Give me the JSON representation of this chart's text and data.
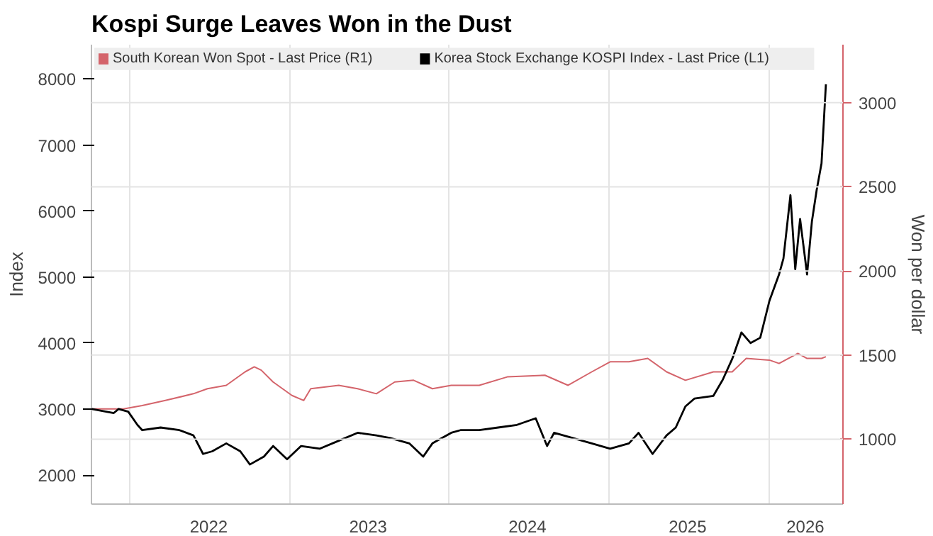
{
  "chart_data": {
    "type": "line",
    "title": "Kospi Surge Leaves Won in the Dust",
    "ylabel": "Index",
    "y2label": "Won per dollar",
    "xlim": [
      "2021-10-06",
      "2026-06-19"
    ],
    "xticks": [
      {
        "value": "2022-01-01",
        "label": null
      },
      {
        "value": "2022-07-01",
        "label": "2022"
      },
      {
        "value": "2023-01-01",
        "label": null
      },
      {
        "value": "2023-06-30",
        "label": "2023"
      },
      {
        "value": "2024-01-01",
        "label": null
      },
      {
        "value": "2024-06-28",
        "label": "2024"
      },
      {
        "value": "2025-01-01",
        "label": null
      },
      {
        "value": "2025-06-29",
        "label": "2025"
      },
      {
        "value": "2026-01-01",
        "label": null
      },
      {
        "value": "2026-03-25",
        "label": "2026"
      }
    ],
    "ylim": [
      1560,
      8520
    ],
    "yticks": [
      2000,
      3000,
      4000,
      5000,
      6000,
      7000,
      8000
    ],
    "y2lim": [
      614,
      3345
    ],
    "y2ticks": [
      1000,
      1500,
      2000,
      2500,
      3000
    ],
    "grid": true,
    "legend": "top",
    "line_style": "solid",
    "series": [
      {
        "name": "South Korean Won Spot - Last Price (R1)",
        "color": "#d4646b",
        "axis": "y2",
        "x": [
          "2021-10-07",
          "2021-12-18",
          "2022-01-30",
          "2022-03-24",
          "2022-05-27",
          "2022-06-28",
          "2022-08-10",
          "2022-09-22",
          "2022-10-13",
          "2022-10-29",
          "2022-11-25",
          "2023-01-07",
          "2023-02-03",
          "2023-02-19",
          "2023-04-24",
          "2023-06-06",
          "2023-07-19",
          "2023-08-30",
          "2023-10-12",
          "2023-11-24",
          "2024-01-06",
          "2024-03-10",
          "2024-05-13",
          "2024-08-07",
          "2024-09-29",
          "2024-11-22",
          "2025-01-03",
          "2025-02-15",
          "2025-03-30",
          "2025-05-12",
          "2025-06-24",
          "2025-08-27",
          "2025-10-09",
          "2025-11-10",
          "2026-01-02",
          "2026-01-24",
          "2026-03-08",
          "2026-03-29",
          "2026-05-01",
          "2026-05-11"
        ],
        "values": [
          1180,
          1180,
          1200,
          1230,
          1270,
          1300,
          1320,
          1400,
          1430,
          1410,
          1340,
          1260,
          1230,
          1300,
          1320,
          1300,
          1270,
          1340,
          1350,
          1300,
          1320,
          1320,
          1370,
          1380,
          1320,
          1400,
          1460,
          1460,
          1480,
          1400,
          1350,
          1400,
          1400,
          1480,
          1470,
          1450,
          1510,
          1480,
          1480,
          1490
        ]
      },
      {
        "name": "Korea Stock Exchange KOSPI Index - Last Price (L1)",
        "color": "#000000",
        "axis": "y",
        "x": [
          "2021-10-07",
          "2021-11-26",
          "2021-12-07",
          "2021-12-29",
          "2022-01-19",
          "2022-01-30",
          "2022-03-13",
          "2022-04-25",
          "2022-05-27",
          "2022-06-18",
          "2022-07-09",
          "2022-08-10",
          "2022-09-11",
          "2022-10-03",
          "2022-11-04",
          "2022-11-25",
          "2022-12-27",
          "2023-01-28",
          "2023-03-12",
          "2023-04-24",
          "2023-06-06",
          "2023-07-19",
          "2023-08-20",
          "2023-10-02",
          "2023-11-03",
          "2023-11-24",
          "2024-01-06",
          "2024-01-27",
          "2024-03-10",
          "2024-04-22",
          "2024-06-04",
          "2024-07-17",
          "2024-08-12",
          "2024-08-28",
          "2024-10-10",
          "2024-11-22",
          "2024-12-13",
          "2025-01-03",
          "2025-02-15",
          "2025-03-09",
          "2025-04-10",
          "2025-05-12",
          "2025-06-02",
          "2025-06-24",
          "2025-07-15",
          "2025-08-27",
          "2025-09-17",
          "2025-10-09",
          "2025-10-30",
          "2025-11-20",
          "2025-12-12",
          "2026-01-02",
          "2026-01-24",
          "2026-02-03",
          "2026-02-19",
          "2026-03-02",
          "2026-03-13",
          "2026-03-29",
          "2026-04-09",
          "2026-04-20",
          "2026-05-01",
          "2026-05-11"
        ],
        "values": [
          3000,
          2940,
          3000,
          2960,
          2760,
          2680,
          2720,
          2680,
          2600,
          2320,
          2360,
          2480,
          2360,
          2160,
          2280,
          2440,
          2240,
          2440,
          2400,
          2520,
          2640,
          2600,
          2560,
          2480,
          2280,
          2480,
          2640,
          2680,
          2680,
          2720,
          2760,
          2860,
          2440,
          2640,
          2560,
          2480,
          2440,
          2400,
          2480,
          2640,
          2320,
          2600,
          2720,
          3040,
          3160,
          3200,
          3440,
          3760,
          4160,
          4000,
          4080,
          4640,
          5040,
          5280,
          6240,
          5120,
          5880,
          5040,
          5840,
          6320,
          6720,
          7920
        ]
      }
    ]
  }
}
